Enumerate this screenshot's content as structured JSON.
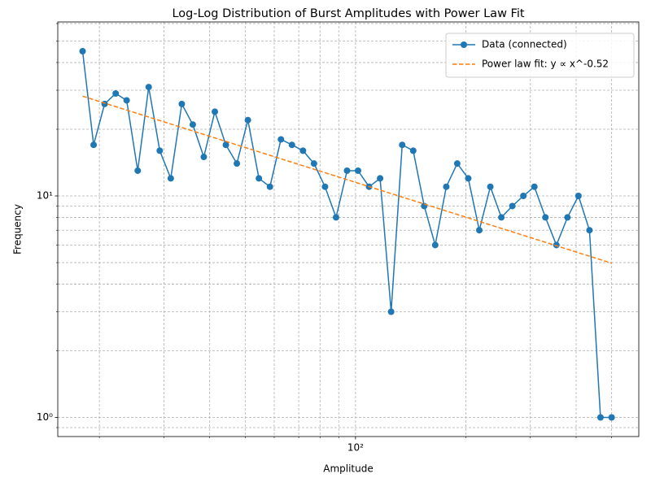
{
  "chart_data": {
    "type": "line",
    "title": "Log-Log Distribution of Burst Amplitudes with Power Law Fit",
    "xlabel": "Amplitude",
    "ylabel": "Frequency",
    "xscale": "log",
    "yscale": "log",
    "grid": true,
    "legend": "upper right",
    "xlim": [
      15.4,
      593
    ],
    "ylim": [
      0.82,
      61
    ],
    "xticks": [
      {
        "value": 100,
        "label": "10²"
      }
    ],
    "yticks": [
      {
        "value": 1,
        "label": "10⁰"
      },
      {
        "value": 10,
        "label": "10¹"
      }
    ],
    "xticks_minor": [
      20,
      30,
      40,
      50,
      60,
      70,
      80,
      90,
      200,
      300,
      400,
      500
    ],
    "yticks_minor": [
      0.9,
      2,
      3,
      4,
      5,
      6,
      7,
      8,
      9,
      20,
      30,
      40,
      50,
      60
    ],
    "series": [
      {
        "name": "Data (connected)",
        "color": "#1f77b4",
        "marker": true,
        "dash": false,
        "x": [
          18.0,
          19.29,
          20.67,
          22.16,
          23.74,
          25.45,
          27.27,
          29.23,
          31.32,
          33.57,
          35.97,
          38.55,
          41.32,
          44.28,
          47.45,
          50.85,
          54.5,
          58.41,
          62.59,
          67.08,
          71.89,
          77.04,
          82.57,
          88.49,
          94.83,
          101.6,
          108.9,
          116.7,
          125.1,
          134.1,
          143.7,
          154.0,
          165.0,
          176.9,
          189.5,
          203.1,
          217.7,
          233.3,
          250.0,
          267.9,
          287.1,
          307.7,
          329.8,
          353.4,
          378.8,
          405.9,
          435.0,
          466.2,
          500.0
        ],
        "values": [
          45,
          17,
          26,
          29,
          27,
          13,
          31,
          16,
          12,
          26,
          21,
          15,
          24,
          17,
          14,
          22,
          12,
          11,
          18,
          17,
          16,
          14,
          11,
          8,
          13,
          13,
          11,
          12,
          3,
          17,
          16,
          9,
          6,
          11,
          14,
          12,
          7,
          11,
          8,
          9,
          10,
          11,
          8,
          6,
          8,
          10,
          7,
          1,
          1
        ]
      },
      {
        "name": "Power law fit: y ∝ x^-0.52",
        "color": "#ff7f0e",
        "marker": false,
        "dash": true,
        "x": [
          18.0,
          500.0
        ],
        "values": [
          28.2,
          4.97
        ]
      }
    ]
  }
}
